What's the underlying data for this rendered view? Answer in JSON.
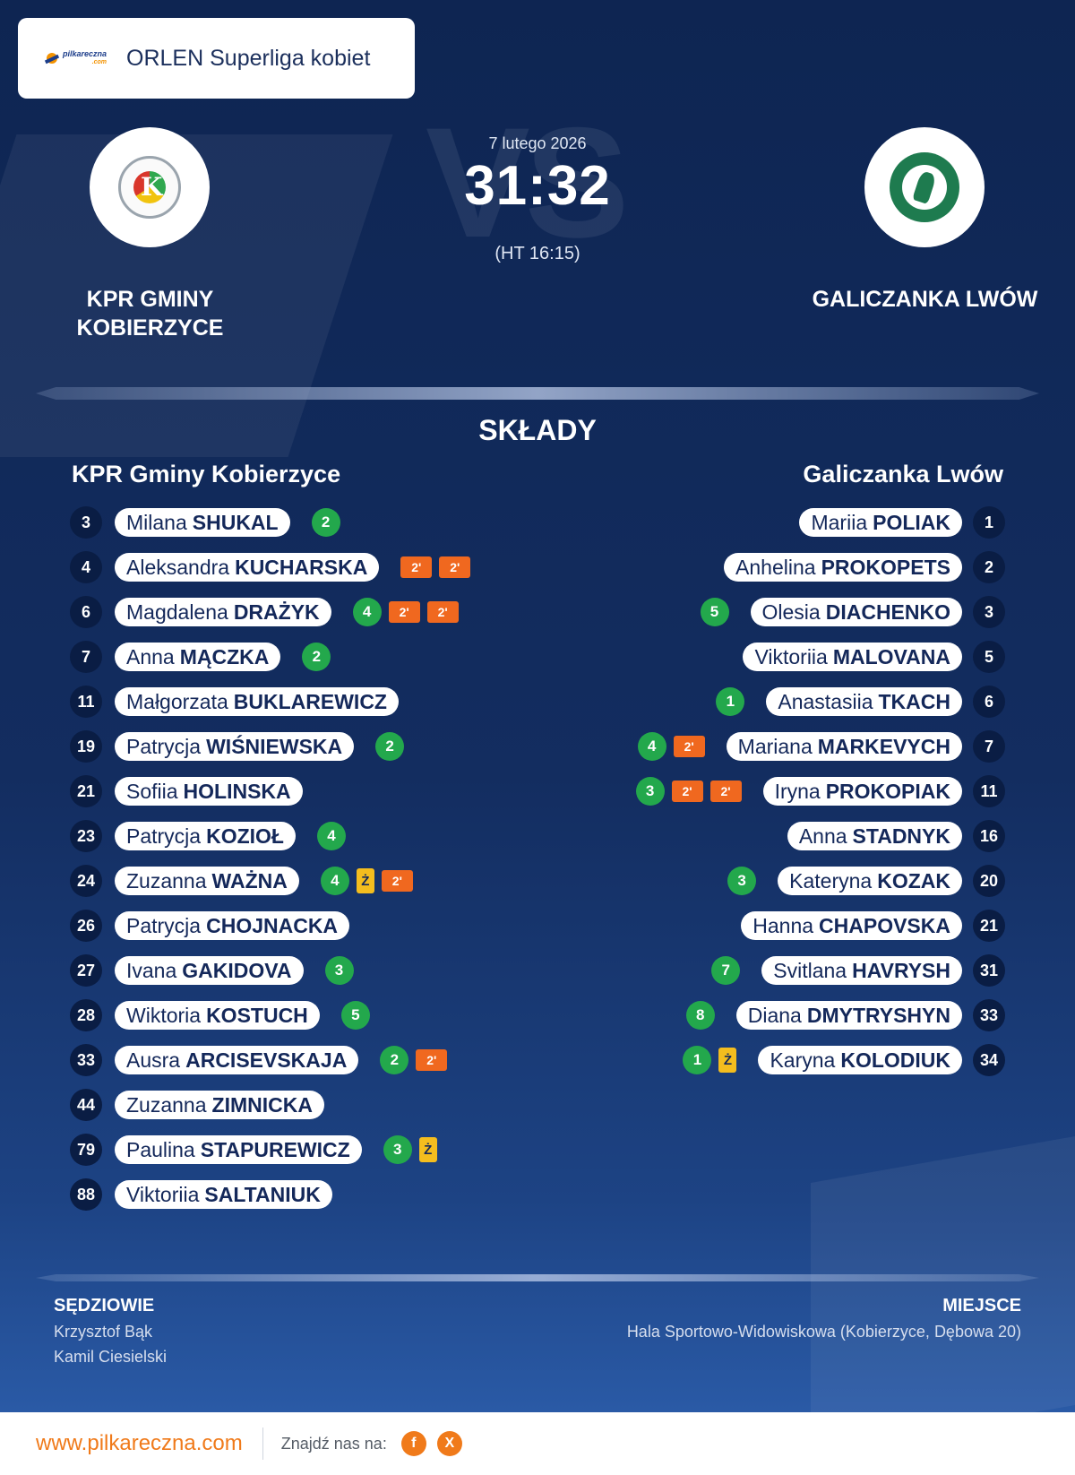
{
  "header": {
    "logo_text": "pilkareczna",
    "logo_sub": ".com",
    "league": "ORLEN Superliga kobiet"
  },
  "match": {
    "date": "7 lutego 2026",
    "score": "31:32",
    "halftime": "(HT 16:15)",
    "vs_watermark": "VS",
    "home_team_caps": "KPR GMINY KOBIERZYCE",
    "away_team_caps": "GALICZANKA LWÓW"
  },
  "lineups": {
    "title": "SKŁADY",
    "home_team": "KPR Gminy Kobierzyce",
    "away_team": "Galiczanka Lwów",
    "home_players": [
      {
        "number": "3",
        "first": "Milana",
        "last": "SHUKAL",
        "events": [
          {
            "type": "goal",
            "value": "2"
          }
        ]
      },
      {
        "number": "4",
        "first": "Aleksandra",
        "last": "KUCHARSKA",
        "events": [
          {
            "type": "penalty",
            "value": "2'"
          },
          {
            "type": "penalty",
            "value": "2'"
          }
        ]
      },
      {
        "number": "6",
        "first": "Magdalena",
        "last": "DRAŻYK",
        "events": [
          {
            "type": "goal",
            "value": "4"
          },
          {
            "type": "penalty",
            "value": "2'"
          },
          {
            "type": "penalty",
            "value": "2'"
          }
        ]
      },
      {
        "number": "7",
        "first": "Anna",
        "last": "MĄCZKA",
        "events": [
          {
            "type": "goal",
            "value": "2"
          }
        ]
      },
      {
        "number": "11",
        "first": "Małgorzata",
        "last": "BUKLAREWICZ",
        "events": []
      },
      {
        "number": "19",
        "first": "Patrycja",
        "last": "WIŚNIEWSKA",
        "events": [
          {
            "type": "goal",
            "value": "2"
          }
        ]
      },
      {
        "number": "21",
        "first": "Sofiia",
        "last": "HOLINSKA",
        "events": []
      },
      {
        "number": "23",
        "first": "Patrycja",
        "last": "KOZIOŁ",
        "events": [
          {
            "type": "goal",
            "value": "4"
          }
        ]
      },
      {
        "number": "24",
        "first": "Zuzanna",
        "last": "WAŻNA",
        "events": [
          {
            "type": "goal",
            "value": "4"
          },
          {
            "type": "yellow",
            "value": "Ż"
          },
          {
            "type": "penalty",
            "value": "2'"
          }
        ]
      },
      {
        "number": "26",
        "first": "Patrycja",
        "last": "CHOJNACKA",
        "events": []
      },
      {
        "number": "27",
        "first": "Ivana",
        "last": "GAKIDOVA",
        "events": [
          {
            "type": "goal",
            "value": "3"
          }
        ]
      },
      {
        "number": "28",
        "first": "Wiktoria",
        "last": "KOSTUCH",
        "events": [
          {
            "type": "goal",
            "value": "5"
          }
        ]
      },
      {
        "number": "33",
        "first": "Ausra",
        "last": "ARCISEVSKAJA",
        "events": [
          {
            "type": "goal",
            "value": "2"
          },
          {
            "type": "penalty",
            "value": "2'"
          }
        ]
      },
      {
        "number": "44",
        "first": "Zuzanna",
        "last": "ZIMNICKA",
        "events": []
      },
      {
        "number": "79",
        "first": "Paulina",
        "last": "STAPUREWICZ",
        "events": [
          {
            "type": "goal",
            "value": "3"
          },
          {
            "type": "yellow",
            "value": "Ż"
          }
        ]
      },
      {
        "number": "88",
        "first": "Viktoriia",
        "last": "SALTANIUK",
        "events": []
      }
    ],
    "away_players": [
      {
        "number": "1",
        "first": "Mariia",
        "last": "POLIAK",
        "events": []
      },
      {
        "number": "2",
        "first": "Anhelina",
        "last": "PROKOPETS",
        "events": []
      },
      {
        "number": "3",
        "first": "Olesia",
        "last": "DIACHENKO",
        "events": [
          {
            "type": "goal",
            "value": "5"
          }
        ]
      },
      {
        "number": "5",
        "first": "Viktoriia",
        "last": "MALOVANA",
        "events": []
      },
      {
        "number": "6",
        "first": "Anastasiia",
        "last": "TKACH",
        "events": [
          {
            "type": "goal",
            "value": "1"
          }
        ]
      },
      {
        "number": "7",
        "first": "Mariana",
        "last": "MARKEVYCH",
        "events": [
          {
            "type": "penalty",
            "value": "2'"
          },
          {
            "type": "goal",
            "value": "4"
          }
        ]
      },
      {
        "number": "11",
        "first": "Iryna",
        "last": "PROKOPIAK",
        "events": [
          {
            "type": "penalty",
            "value": "2'"
          },
          {
            "type": "penalty",
            "value": "2'"
          },
          {
            "type": "goal",
            "value": "3"
          }
        ]
      },
      {
        "number": "16",
        "first": "Anna",
        "last": "STADNYK",
        "events": []
      },
      {
        "number": "20",
        "first": "Kateryna",
        "last": "KOZAK",
        "events": [
          {
            "type": "goal",
            "value": "3"
          }
        ]
      },
      {
        "number": "21",
        "first": "Hanna",
        "last": "CHAPOVSKA",
        "events": []
      },
      {
        "number": "31",
        "first": "Svitlana",
        "last": "HAVRYSH",
        "events": [
          {
            "type": "goal",
            "value": "7"
          }
        ]
      },
      {
        "number": "33",
        "first": "Diana",
        "last": "DMYTRYSHYN",
        "events": [
          {
            "type": "goal",
            "value": "8"
          }
        ]
      },
      {
        "number": "34",
        "first": "Karyna",
        "last": "KOLODIUK",
        "events": [
          {
            "type": "yellow",
            "value": "Ż"
          },
          {
            "type": "goal",
            "value": "1"
          }
        ]
      }
    ]
  },
  "officials": {
    "title": "SĘDZIOWIE",
    "referees": [
      "Krzysztof Bąk",
      "Kamil Ciesielski"
    ]
  },
  "venue": {
    "title": "MIEJSCE",
    "name": "Hala Sportowo-Widowiskowa (Kobierzyce, Dębowa 20)"
  },
  "footer": {
    "website": "www.pilkareczna.com",
    "find_us": "Znajdź nas na:",
    "social": [
      {
        "icon": "facebook-icon",
        "label": "f"
      },
      {
        "icon": "x-icon",
        "label": "X"
      }
    ]
  },
  "colors": {
    "background": "#132d60",
    "goal": "#23a84c",
    "penalty": "#f0681f",
    "yellow_card": "#f4bd1e",
    "brand": "#f07a1a"
  }
}
